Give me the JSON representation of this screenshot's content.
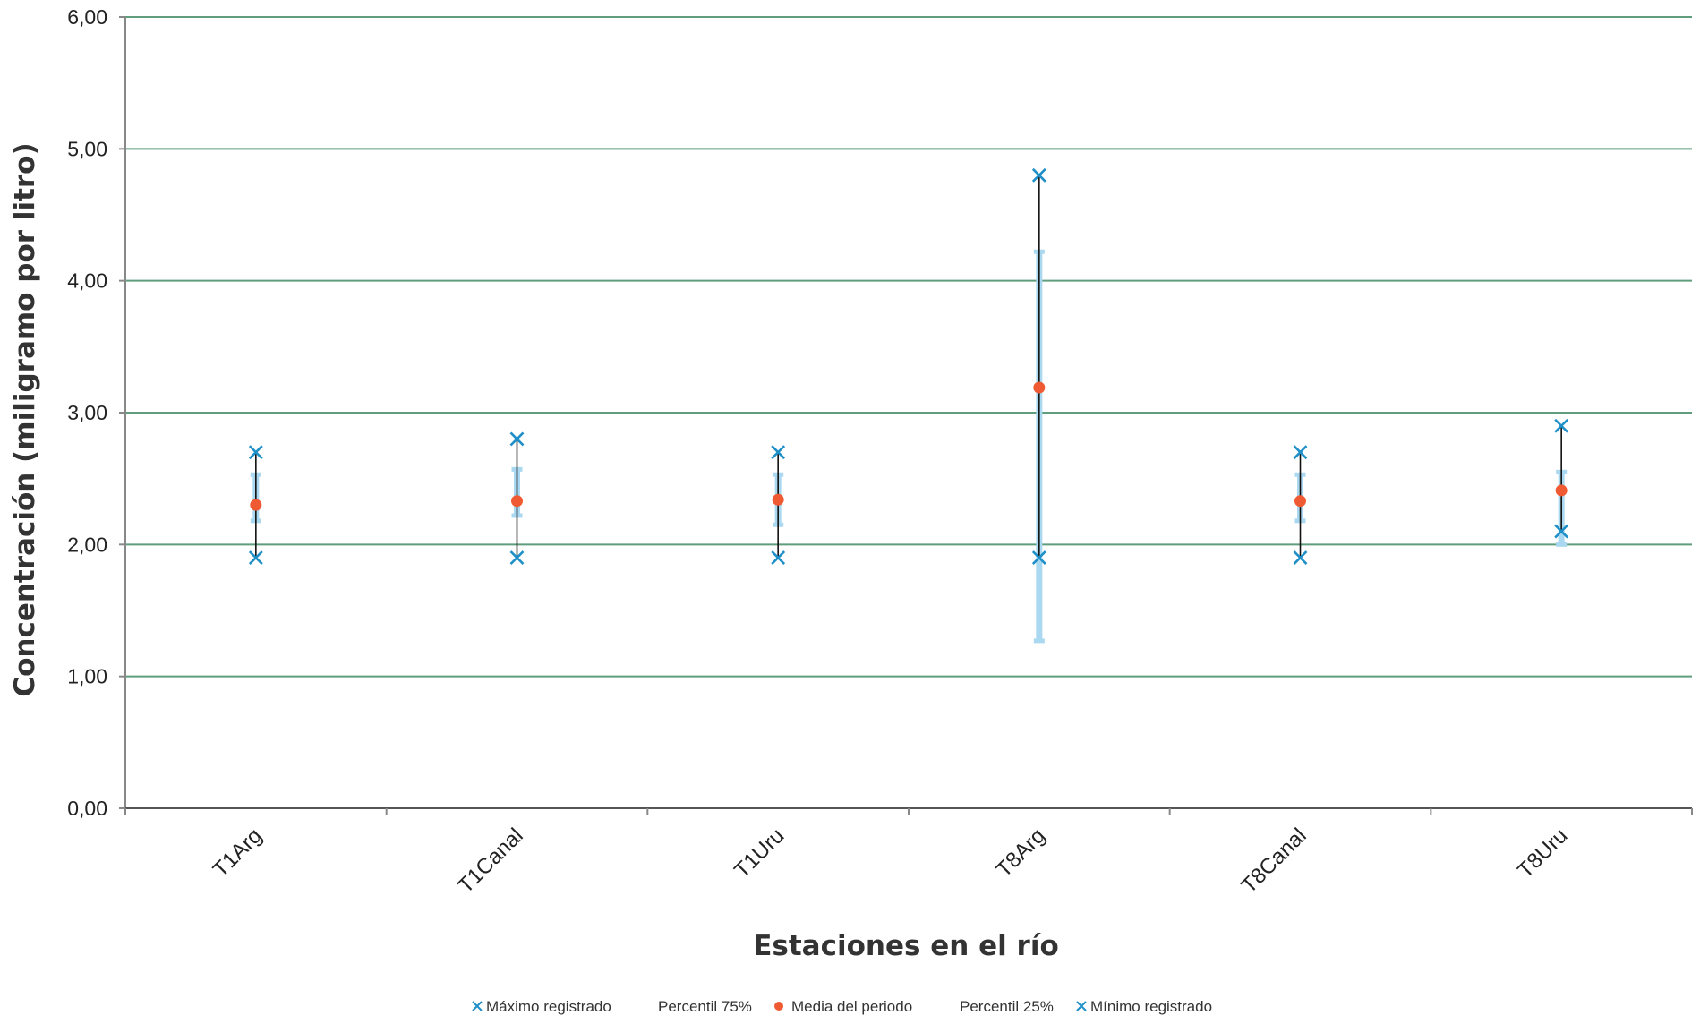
{
  "chart_data": {
    "type": "scatter",
    "categories": [
      "T1Arg",
      "T1Canal",
      "T1Uru",
      "T8Arg",
      "T8Canal",
      "T8Uru"
    ],
    "series": [
      {
        "name": "Máximo registrado",
        "marker": "x",
        "color": "#1f8fc8",
        "values": [
          2.7,
          2.8,
          2.7,
          4.8,
          2.7,
          2.9
        ]
      },
      {
        "name": "Percentil 75%",
        "marker": "dash",
        "color": "#a9d8f0",
        "values": [
          2.53,
          2.57,
          2.53,
          4.22,
          2.53,
          2.55
        ]
      },
      {
        "name": "Media del periodo",
        "marker": "circle",
        "color": "#f05a32",
        "values": [
          2.3,
          2.33,
          2.34,
          3.19,
          2.33,
          2.41
        ]
      },
      {
        "name": "Percentil 25%",
        "marker": "dash",
        "color": "#a9d8f0",
        "values": [
          2.18,
          2.22,
          2.15,
          1.27,
          2.18,
          2.0
        ]
      },
      {
        "name": "Mínimo registrado",
        "marker": "x",
        "color": "#1f8fc8",
        "values": [
          1.9,
          1.9,
          1.9,
          1.9,
          1.9,
          2.1
        ]
      }
    ],
    "xlabel": "Estaciones en el río",
    "ylabel": "Concentración (miligramo por litro)",
    "ylim": [
      0,
      6
    ],
    "yticks": [
      "0,00",
      "1,00",
      "2,00",
      "3,00",
      "4,00",
      "5,00",
      "6,00"
    ],
    "grid": true,
    "legend_position": "bottom-center",
    "colors": {
      "grid": "#5f9d7d",
      "axis": "#888888",
      "range_line": "#111111",
      "percentile_band": "#a9d8f0"
    }
  }
}
